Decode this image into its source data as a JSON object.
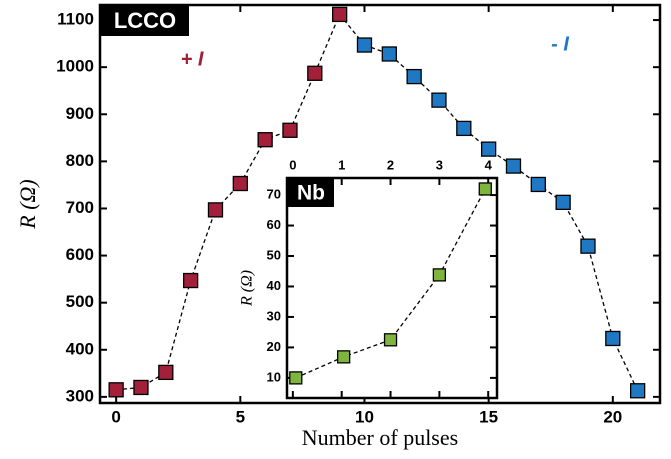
{
  "chart_data": [
    {
      "type": "scatter",
      "x_label": "Number of pulses",
      "y_label": "R (Ω)",
      "annotations": [
        "LCCO",
        "+ I",
        "- I"
      ],
      "xlim": [
        -0.65,
        21.9
      ],
      "ylim": [
        287,
        1132
      ],
      "xticks": [
        0,
        5,
        10,
        15,
        20
      ],
      "yticks": [
        300,
        400,
        500,
        600,
        700,
        800,
        900,
        1000,
        1100
      ],
      "series": [
        {
          "color": "#a3203a",
          "x": [
            0,
            1,
            2,
            3,
            4,
            5,
            6,
            7,
            8,
            9
          ],
          "values": [
            315,
            320,
            352,
            547,
            697,
            753,
            846,
            866,
            987,
            1112
          ]
        },
        {
          "color": "#1f78c4",
          "x": [
            10,
            11,
            12,
            13,
            14,
            15,
            16,
            17,
            18,
            19,
            20,
            21
          ],
          "values": [
            1047,
            1028,
            980,
            930,
            870,
            826,
            790,
            751,
            713,
            620,
            424,
            313
          ]
        }
      ]
    },
    {
      "type": "scatter",
      "y_label": "R (Ω)",
      "annotations": [
        "Nb"
      ],
      "xlim": [
        -0.12,
        4.18
      ],
      "ylim": [
        3.4,
        75.6
      ],
      "xticks": [
        0,
        1,
        2,
        3,
        4
      ],
      "yticks": [
        10,
        20,
        30,
        40,
        50,
        60,
        70
      ],
      "series": [
        {
          "color": "#7fb53c",
          "x": [
            0.06,
            1.04,
            2.0,
            3.0,
            3.94
          ],
          "values": [
            10,
            16.9,
            22.5,
            43.8,
            72
          ]
        }
      ]
    }
  ]
}
